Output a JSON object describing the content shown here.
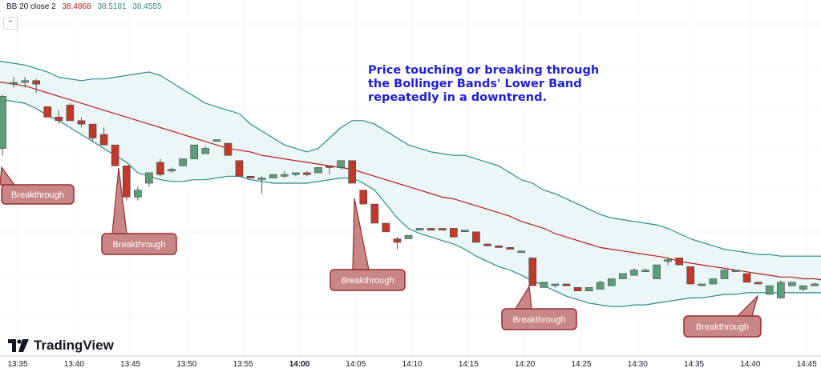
{
  "legend": {
    "indicator": "BB 20 close 2",
    "basis": "38.4868",
    "upper": "38.5181",
    "lower": "38.4555",
    "basis_color": "#b71c1c",
    "band_color": "#2a8a8a"
  },
  "annotation": "Price touching or breaking through the Bollinger Bands' Lower Band repeatedly in a downtrend.",
  "logo": "TradingView",
  "callout_label": "Breakthrough",
  "colors": {
    "up": "#5b9e78",
    "down": "#c0392b",
    "band_fill": "#eaf7f6",
    "callout_fill": "#c98686",
    "callout_stroke": "#9b2d2d"
  },
  "chart_data": {
    "type": "candlestick",
    "x_tick_labels": [
      "13:35",
      "13:40",
      "13:45",
      "13:50",
      "13:55",
      "14:00",
      "14:05",
      "14:10",
      "14:15",
      "14:20",
      "14:25",
      "14:30",
      "14:35",
      "14:40",
      "14:45"
    ],
    "candles": [
      {
        "o": 38.72,
        "h": 38.875,
        "l": 38.7,
        "c": 38.87
      },
      {
        "o": 38.91,
        "h": 38.925,
        "l": 38.895,
        "c": 38.91
      },
      {
        "o": 38.91,
        "h": 38.925,
        "l": 38.895,
        "c": 38.915
      },
      {
        "o": 38.915,
        "h": 38.92,
        "l": 38.88,
        "c": 38.905
      },
      {
        "o": 38.84,
        "h": 38.84,
        "l": 38.81,
        "c": 38.81
      },
      {
        "o": 38.81,
        "h": 38.83,
        "l": 38.79,
        "c": 38.8
      },
      {
        "o": 38.845,
        "h": 38.85,
        "l": 38.8,
        "c": 38.8
      },
      {
        "o": 38.8,
        "h": 38.81,
        "l": 38.78,
        "c": 38.79
      },
      {
        "o": 38.79,
        "h": 38.79,
        "l": 38.74,
        "c": 38.75
      },
      {
        "o": 38.76,
        "h": 38.78,
        "l": 38.73,
        "c": 38.73
      },
      {
        "o": 38.73,
        "h": 38.73,
        "l": 38.67,
        "c": 38.67
      },
      {
        "o": 38.67,
        "h": 38.67,
        "l": 38.57,
        "c": 38.58
      },
      {
        "o": 38.58,
        "h": 38.61,
        "l": 38.57,
        "c": 38.6
      },
      {
        "o": 38.62,
        "h": 38.65,
        "l": 38.61,
        "c": 38.65
      },
      {
        "o": 38.68,
        "h": 38.69,
        "l": 38.64,
        "c": 38.645
      },
      {
        "o": 38.655,
        "h": 38.665,
        "l": 38.65,
        "c": 38.66
      },
      {
        "o": 38.67,
        "h": 38.69,
        "l": 38.67,
        "c": 38.69
      },
      {
        "o": 38.69,
        "h": 38.73,
        "l": 38.69,
        "c": 38.73
      },
      {
        "o": 38.705,
        "h": 38.725,
        "l": 38.705,
        "c": 38.72
      },
      {
        "o": 38.745,
        "h": 38.745,
        "l": 38.745,
        "c": 38.745
      },
      {
        "o": 38.735,
        "h": 38.735,
        "l": 38.7,
        "c": 38.7
      },
      {
        "o": 38.685,
        "h": 38.685,
        "l": 38.64,
        "c": 38.64
      },
      {
        "o": 38.64,
        "h": 38.64,
        "l": 38.635,
        "c": 38.635
      },
      {
        "o": 38.635,
        "h": 38.64,
        "l": 38.59,
        "c": 38.635
      },
      {
        "o": 38.635,
        "h": 38.645,
        "l": 38.635,
        "c": 38.645
      },
      {
        "o": 38.64,
        "h": 38.655,
        "l": 38.635,
        "c": 38.645
      },
      {
        "o": 38.645,
        "h": 38.65,
        "l": 38.64,
        "c": 38.65
      },
      {
        "o": 38.65,
        "h": 38.655,
        "l": 38.64,
        "c": 38.645
      },
      {
        "o": 38.65,
        "h": 38.665,
        "l": 38.65,
        "c": 38.665
      },
      {
        "o": 38.67,
        "h": 38.67,
        "l": 38.645,
        "c": 38.665
      },
      {
        "o": 38.665,
        "h": 38.685,
        "l": 38.66,
        "c": 38.685
      },
      {
        "o": 38.685,
        "h": 38.685,
        "l": 38.62,
        "c": 38.62
      },
      {
        "o": 38.6,
        "h": 38.6,
        "l": 38.56,
        "c": 38.56
      },
      {
        "o": 38.56,
        "h": 38.56,
        "l": 38.505,
        "c": 38.505
      },
      {
        "o": 38.505,
        "h": 38.505,
        "l": 38.48,
        "c": 38.48
      },
      {
        "o": 38.46,
        "h": 38.465,
        "l": 38.43,
        "c": 38.45
      },
      {
        "o": 38.46,
        "h": 38.47,
        "l": 38.46,
        "c": 38.47
      },
      {
        "o": 38.485,
        "h": 38.49,
        "l": 38.485,
        "c": 38.49
      },
      {
        "o": 38.49,
        "h": 38.49,
        "l": 38.485,
        "c": 38.485
      },
      {
        "o": 38.49,
        "h": 38.49,
        "l": 38.485,
        "c": 38.485
      },
      {
        "o": 38.49,
        "h": 38.49,
        "l": 38.465,
        "c": 38.465
      },
      {
        "o": 38.485,
        "h": 38.485,
        "l": 38.485,
        "c": 38.485
      },
      {
        "o": 38.48,
        "h": 38.48,
        "l": 38.45,
        "c": 38.45
      },
      {
        "o": 38.445,
        "h": 38.445,
        "l": 38.44,
        "c": 38.44
      },
      {
        "o": 38.44,
        "h": 38.44,
        "l": 38.435,
        "c": 38.435
      },
      {
        "o": 38.435,
        "h": 38.435,
        "l": 38.43,
        "c": 38.43
      },
      {
        "o": 38.425,
        "h": 38.425,
        "l": 38.425,
        "c": 38.425
      },
      {
        "o": 38.405,
        "h": 38.405,
        "l": 38.325,
        "c": 38.325
      },
      {
        "o": 38.32,
        "h": 38.335,
        "l": 38.32,
        "c": 38.335
      },
      {
        "o": 38.33,
        "h": 38.33,
        "l": 38.32,
        "c": 38.33
      },
      {
        "o": 38.33,
        "h": 38.33,
        "l": 38.325,
        "c": 38.325
      },
      {
        "o": 38.32,
        "h": 38.32,
        "l": 38.31,
        "c": 38.31
      },
      {
        "o": 38.31,
        "h": 38.32,
        "l": 38.31,
        "c": 38.32
      },
      {
        "o": 38.315,
        "h": 38.34,
        "l": 38.315,
        "c": 38.335
      },
      {
        "o": 38.325,
        "h": 38.345,
        "l": 38.325,
        "c": 38.345
      },
      {
        "o": 38.345,
        "h": 38.36,
        "l": 38.345,
        "c": 38.36
      },
      {
        "o": 38.355,
        "h": 38.375,
        "l": 38.355,
        "c": 38.37
      },
      {
        "o": 38.37,
        "h": 38.375,
        "l": 38.37,
        "c": 38.37
      },
      {
        "o": 38.345,
        "h": 38.385,
        "l": 38.345,
        "c": 38.385
      },
      {
        "o": 38.395,
        "h": 38.405,
        "l": 38.385,
        "c": 38.4
      },
      {
        "o": 38.405,
        "h": 38.405,
        "l": 38.385,
        "c": 38.385
      },
      {
        "o": 38.38,
        "h": 38.38,
        "l": 38.33,
        "c": 38.33
      },
      {
        "o": 38.33,
        "h": 38.33,
        "l": 38.33,
        "c": 38.33
      },
      {
        "o": 38.33,
        "h": 38.345,
        "l": 38.33,
        "c": 38.345
      },
      {
        "o": 38.345,
        "h": 38.37,
        "l": 38.345,
        "c": 38.37
      },
      {
        "o": 38.37,
        "h": 38.37,
        "l": 38.37,
        "c": 38.37
      },
      {
        "o": 38.36,
        "h": 38.36,
        "l": 38.335,
        "c": 38.335
      },
      {
        "o": 38.335,
        "h": 38.335,
        "l": 38.33,
        "c": 38.33
      },
      {
        "o": 38.3,
        "h": 38.325,
        "l": 38.3,
        "c": 38.325
      },
      {
        "o": 38.29,
        "h": 38.34,
        "l": 38.29,
        "c": 38.335
      },
      {
        "o": 38.325,
        "h": 38.335,
        "l": 38.325,
        "c": 38.335
      },
      {
        "o": 38.315,
        "h": 38.325,
        "l": 38.31,
        "c": 38.325
      },
      {
        "o": 38.325,
        "h": 38.335,
        "l": 38.325,
        "c": 38.33
      },
      {
        "o": 38.33,
        "h": 38.34,
        "l": 38.33,
        "c": 38.335
      }
    ],
    "upper_band": [
      38.97,
      38.965,
      38.96,
      38.95,
      38.94,
      38.925,
      38.92,
      38.915,
      38.92,
      38.92,
      38.925,
      38.93,
      38.935,
      38.94,
      38.93,
      38.91,
      38.89,
      38.87,
      38.85,
      38.84,
      38.83,
      38.82,
      38.79,
      38.77,
      38.75,
      38.73,
      38.72,
      38.71,
      38.72,
      38.75,
      38.78,
      38.8,
      38.8,
      38.79,
      38.77,
      38.75,
      38.73,
      38.72,
      38.71,
      38.705,
      38.7,
      38.7,
      38.69,
      38.68,
      38.67,
      38.65,
      38.63,
      38.62,
      38.6,
      38.59,
      38.575,
      38.56,
      38.545,
      38.53,
      38.52,
      38.515,
      38.51,
      38.505,
      38.5,
      38.49,
      38.475,
      38.46,
      38.45,
      38.44,
      38.43,
      38.425,
      38.42,
      38.415,
      38.415,
      38.41,
      38.41,
      38.41,
      38.41,
      38.41
    ],
    "basis": [
      38.91,
      38.905,
      38.9,
      38.89,
      38.88,
      38.87,
      38.86,
      38.85,
      38.84,
      38.83,
      38.82,
      38.81,
      38.8,
      38.79,
      38.78,
      38.77,
      38.76,
      38.75,
      38.74,
      38.73,
      38.72,
      38.715,
      38.71,
      38.7,
      38.695,
      38.69,
      38.685,
      38.68,
      38.675,
      38.67,
      38.665,
      38.66,
      38.65,
      38.64,
      38.63,
      38.62,
      38.61,
      38.6,
      38.59,
      38.58,
      38.575,
      38.565,
      38.555,
      38.545,
      38.535,
      38.525,
      38.51,
      38.5,
      38.49,
      38.475,
      38.465,
      38.455,
      38.445,
      38.435,
      38.43,
      38.425,
      38.42,
      38.415,
      38.41,
      38.405,
      38.395,
      38.39,
      38.385,
      38.38,
      38.375,
      38.37,
      38.365,
      38.36,
      38.355,
      38.35,
      38.35,
      38.345,
      38.345,
      38.34
    ],
    "lower_band": [
      38.86,
      38.855,
      38.85,
      38.835,
      38.815,
      38.8,
      38.78,
      38.76,
      38.74,
      38.72,
      38.7,
      38.68,
      38.65,
      38.64,
      38.63,
      38.625,
      38.625,
      38.63,
      38.63,
      38.635,
      38.64,
      38.64,
      38.63,
      38.625,
      38.62,
      38.62,
      38.62,
      38.62,
      38.625,
      38.63,
      38.635,
      38.635,
      38.62,
      38.6,
      38.56,
      38.52,
      38.49,
      38.475,
      38.465,
      38.455,
      38.445,
      38.43,
      38.41,
      38.395,
      38.38,
      38.37,
      38.355,
      38.34,
      38.325,
      38.31,
      38.295,
      38.285,
      38.275,
      38.27,
      38.265,
      38.265,
      38.27,
      38.27,
      38.275,
      38.28,
      38.285,
      38.29,
      38.29,
      38.295,
      38.3,
      38.3,
      38.305,
      38.305,
      38.305,
      38.305,
      38.305,
      38.305,
      38.305,
      38.305
    ]
  }
}
